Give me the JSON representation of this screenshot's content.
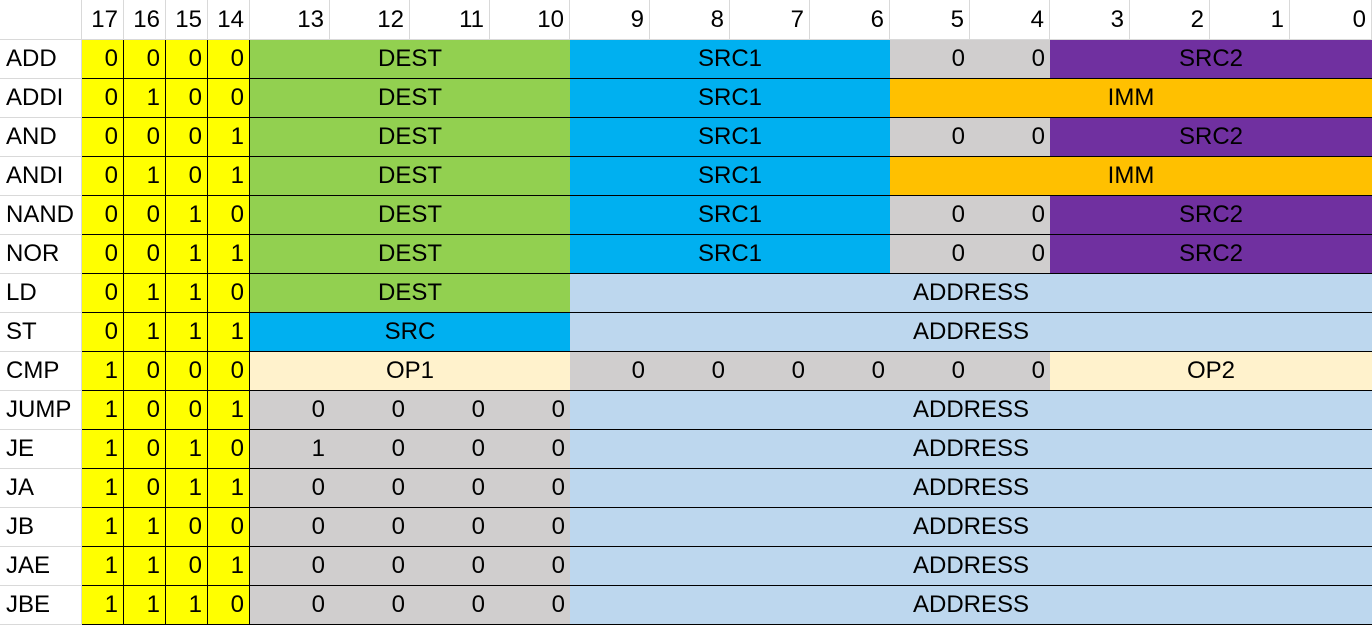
{
  "colors": {
    "opcode": "#ffff00",
    "dest": "#92d050",
    "src": "#00b0f0",
    "zero": "#d0cece",
    "src2": "#7030a0",
    "imm": "#ffc000",
    "address": "#bdd7ee",
    "operand": "#fff2cc"
  },
  "header_bits": [
    "17",
    "16",
    "15",
    "14",
    "13",
    "12",
    "11",
    "10",
    "9",
    "8",
    "7",
    "6",
    "5",
    "4",
    "3",
    "2",
    "1",
    "0"
  ],
  "rows": [
    {
      "name": "ADD",
      "opcode": [
        "0",
        "0",
        "0",
        "0"
      ],
      "fields": [
        {
          "span": 4,
          "text": "DEST",
          "color": "dest"
        },
        {
          "span": 4,
          "text": "SRC1",
          "color": "src"
        },
        {
          "span": 1,
          "text": "0",
          "color": "zero",
          "align": "r"
        },
        {
          "span": 1,
          "text": "0",
          "color": "zero",
          "align": "r"
        },
        {
          "span": 4,
          "text": "SRC2",
          "color": "src2"
        }
      ]
    },
    {
      "name": "ADDI",
      "opcode": [
        "0",
        "1",
        "0",
        "0"
      ],
      "fields": [
        {
          "span": 4,
          "text": "DEST",
          "color": "dest"
        },
        {
          "span": 4,
          "text": "SRC1",
          "color": "src"
        },
        {
          "span": 6,
          "text": "IMM",
          "color": "imm"
        }
      ]
    },
    {
      "name": "AND",
      "opcode": [
        "0",
        "0",
        "0",
        "1"
      ],
      "fields": [
        {
          "span": 4,
          "text": "DEST",
          "color": "dest"
        },
        {
          "span": 4,
          "text": "SRC1",
          "color": "src"
        },
        {
          "span": 1,
          "text": "0",
          "color": "zero",
          "align": "r"
        },
        {
          "span": 1,
          "text": "0",
          "color": "zero",
          "align": "r"
        },
        {
          "span": 4,
          "text": "SRC2",
          "color": "src2"
        }
      ]
    },
    {
      "name": "ANDI",
      "opcode": [
        "0",
        "1",
        "0",
        "1"
      ],
      "fields": [
        {
          "span": 4,
          "text": "DEST",
          "color": "dest"
        },
        {
          "span": 4,
          "text": "SRC1",
          "color": "src"
        },
        {
          "span": 6,
          "text": "IMM",
          "color": "imm"
        }
      ]
    },
    {
      "name": "NAND",
      "opcode": [
        "0",
        "0",
        "1",
        "0"
      ],
      "fields": [
        {
          "span": 4,
          "text": "DEST",
          "color": "dest"
        },
        {
          "span": 4,
          "text": "SRC1",
          "color": "src"
        },
        {
          "span": 1,
          "text": "0",
          "color": "zero",
          "align": "r"
        },
        {
          "span": 1,
          "text": "0",
          "color": "zero",
          "align": "r"
        },
        {
          "span": 4,
          "text": "SRC2",
          "color": "src2"
        }
      ]
    },
    {
      "name": "NOR",
      "opcode": [
        "0",
        "0",
        "1",
        "1"
      ],
      "fields": [
        {
          "span": 4,
          "text": "DEST",
          "color": "dest"
        },
        {
          "span": 4,
          "text": "SRC1",
          "color": "src"
        },
        {
          "span": 1,
          "text": "0",
          "color": "zero",
          "align": "r"
        },
        {
          "span": 1,
          "text": "0",
          "color": "zero",
          "align": "r"
        },
        {
          "span": 4,
          "text": "SRC2",
          "color": "src2"
        }
      ]
    },
    {
      "name": "LD",
      "opcode": [
        "0",
        "1",
        "1",
        "0"
      ],
      "fields": [
        {
          "span": 4,
          "text": "DEST",
          "color": "dest"
        },
        {
          "span": 10,
          "text": "ADDRESS",
          "color": "address"
        }
      ]
    },
    {
      "name": "ST",
      "opcode": [
        "0",
        "1",
        "1",
        "1"
      ],
      "fields": [
        {
          "span": 4,
          "text": "SRC",
          "color": "src"
        },
        {
          "span": 10,
          "text": "ADDRESS",
          "color": "address"
        }
      ]
    },
    {
      "name": "CMP",
      "opcode": [
        "1",
        "0",
        "0",
        "0"
      ],
      "fields": [
        {
          "span": 4,
          "text": "OP1",
          "color": "operand"
        },
        {
          "span": 1,
          "text": "0",
          "color": "zero",
          "align": "r"
        },
        {
          "span": 1,
          "text": "0",
          "color": "zero",
          "align": "r"
        },
        {
          "span": 1,
          "text": "0",
          "color": "zero",
          "align": "r"
        },
        {
          "span": 1,
          "text": "0",
          "color": "zero",
          "align": "r"
        },
        {
          "span": 1,
          "text": "0",
          "color": "zero",
          "align": "r"
        },
        {
          "span": 1,
          "text": "0",
          "color": "zero",
          "align": "r"
        },
        {
          "span": 4,
          "text": "OP2",
          "color": "operand"
        }
      ]
    },
    {
      "name": "JUMP",
      "opcode": [
        "1",
        "0",
        "0",
        "1"
      ],
      "fields": [
        {
          "span": 1,
          "text": "0",
          "color": "zero",
          "align": "r"
        },
        {
          "span": 1,
          "text": "0",
          "color": "zero",
          "align": "r"
        },
        {
          "span": 1,
          "text": "0",
          "color": "zero",
          "align": "r"
        },
        {
          "span": 1,
          "text": "0",
          "color": "zero",
          "align": "r"
        },
        {
          "span": 10,
          "text": "ADDRESS",
          "color": "address"
        }
      ]
    },
    {
      "name": "JE",
      "opcode": [
        "1",
        "0",
        "1",
        "0"
      ],
      "fields": [
        {
          "span": 1,
          "text": "1",
          "color": "zero",
          "align": "r"
        },
        {
          "span": 1,
          "text": "0",
          "color": "zero",
          "align": "r"
        },
        {
          "span": 1,
          "text": "0",
          "color": "zero",
          "align": "r"
        },
        {
          "span": 1,
          "text": "0",
          "color": "zero",
          "align": "r"
        },
        {
          "span": 10,
          "text": "ADDRESS",
          "color": "address"
        }
      ]
    },
    {
      "name": "JA",
      "opcode": [
        "1",
        "0",
        "1",
        "1"
      ],
      "fields": [
        {
          "span": 1,
          "text": "0",
          "color": "zero",
          "align": "r"
        },
        {
          "span": 1,
          "text": "0",
          "color": "zero",
          "align": "r"
        },
        {
          "span": 1,
          "text": "0",
          "color": "zero",
          "align": "r"
        },
        {
          "span": 1,
          "text": "0",
          "color": "zero",
          "align": "r"
        },
        {
          "span": 10,
          "text": "ADDRESS",
          "color": "address"
        }
      ]
    },
    {
      "name": "JB",
      "opcode": [
        "1",
        "1",
        "0",
        "0"
      ],
      "fields": [
        {
          "span": 1,
          "text": "0",
          "color": "zero",
          "align": "r"
        },
        {
          "span": 1,
          "text": "0",
          "color": "zero",
          "align": "r"
        },
        {
          "span": 1,
          "text": "0",
          "color": "zero",
          "align": "r"
        },
        {
          "span": 1,
          "text": "0",
          "color": "zero",
          "align": "r"
        },
        {
          "span": 10,
          "text": "ADDRESS",
          "color": "address"
        }
      ]
    },
    {
      "name": "JAE",
      "opcode": [
        "1",
        "1",
        "0",
        "1"
      ],
      "fields": [
        {
          "span": 1,
          "text": "0",
          "color": "zero",
          "align": "r"
        },
        {
          "span": 1,
          "text": "0",
          "color": "zero",
          "align": "r"
        },
        {
          "span": 1,
          "text": "0",
          "color": "zero",
          "align": "r"
        },
        {
          "span": 1,
          "text": "0",
          "color": "zero",
          "align": "r"
        },
        {
          "span": 10,
          "text": "ADDRESS",
          "color": "address"
        }
      ]
    },
    {
      "name": "JBE",
      "opcode": [
        "1",
        "1",
        "1",
        "0"
      ],
      "fields": [
        {
          "span": 1,
          "text": "0",
          "color": "zero",
          "align": "r"
        },
        {
          "span": 1,
          "text": "0",
          "color": "zero",
          "align": "r"
        },
        {
          "span": 1,
          "text": "0",
          "color": "zero",
          "align": "r"
        },
        {
          "span": 1,
          "text": "0",
          "color": "zero",
          "align": "r"
        },
        {
          "span": 10,
          "text": "ADDRESS",
          "color": "address"
        }
      ]
    }
  ]
}
